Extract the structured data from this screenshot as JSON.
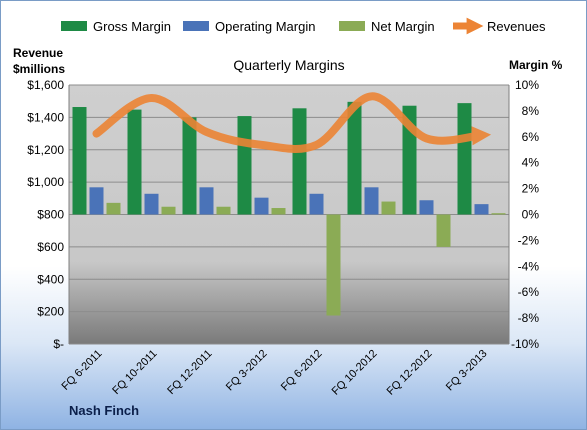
{
  "chart_data": {
    "type": "bar",
    "title": "Quarterly Margins",
    "left_axis_label_line1": "Revenue",
    "left_axis_label_line2": "$millions",
    "right_axis_label": "Margin %",
    "categories": [
      "FQ 6-2011",
      "FQ 10-2011",
      "FQ 12-2011",
      "FQ 3-2012",
      "FQ 6-2012",
      "FQ 10-2012",
      "FQ 12-2012",
      "FQ 3-2013"
    ],
    "left_ticks": [
      "$-",
      "$200",
      "$400",
      "$600",
      "$800",
      "$1,000",
      "$1,200",
      "$1,400",
      "$1,600"
    ],
    "right_ticks": [
      "-10%",
      "-8%",
      "-6%",
      "-4%",
      "-2%",
      "0%",
      "2%",
      "4%",
      "6%",
      "8%",
      "10%"
    ],
    "ylim_left": [
      0,
      1600
    ],
    "ylim_right": [
      -10,
      10
    ],
    "series": [
      {
        "name": "Gross Margin",
        "axis": "right",
        "color": "#1e8a45",
        "values": [
          8.3,
          8.1,
          7.5,
          7.6,
          8.2,
          8.7,
          8.4,
          8.6
        ]
      },
      {
        "name": "Operating Margin",
        "axis": "right",
        "color": "#4a73b8",
        "values": [
          2.1,
          1.6,
          2.1,
          1.3,
          1.6,
          2.1,
          1.1,
          0.8
        ]
      },
      {
        "name": "Net Margin",
        "axis": "right",
        "color": "#8bab55",
        "values": [
          0.9,
          0.6,
          0.6,
          0.5,
          -7.8,
          1.0,
          -2.5,
          0.1
        ]
      },
      {
        "name": "Revenues",
        "axis": "left",
        "type": "line",
        "color": "#ec8435",
        "values": [
          1300,
          1520,
          1310,
          1230,
          1230,
          1530,
          1270,
          1290
        ]
      }
    ],
    "legend_position": "top",
    "grid": true
  },
  "company": "Nash Finch"
}
